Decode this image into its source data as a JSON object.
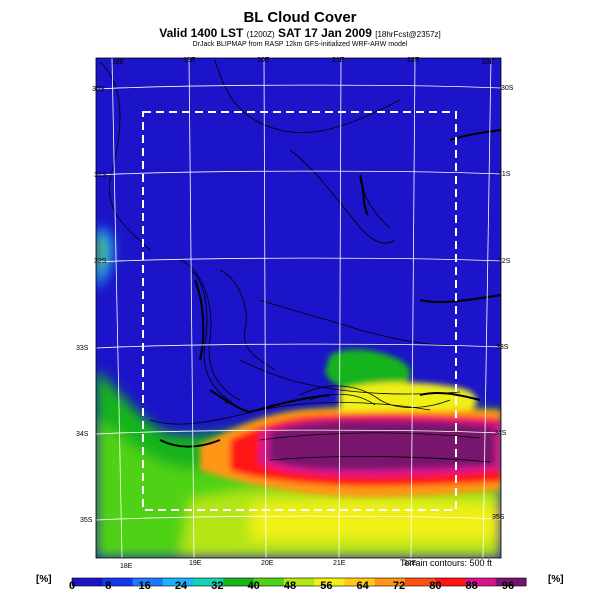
{
  "title": "BL Cloud Cover",
  "subtitle_main": "Valid 1400 LST",
  "subtitle_small_1": "(1200Z)",
  "subtitle_date": "SAT 17 Jan 2009",
  "subtitle_small_2": "[18hrFcst@2357z]",
  "credit": "DrJack BLIPMAP from RASP 12km GFS-initialized WRF-ARW model",
  "terrain_note": "Terrain contours: 500 ft",
  "map": {
    "top_lon_labels": [
      "18E",
      "19E",
      "20E",
      "21E",
      "22E",
      "23E"
    ],
    "bottom_lon_labels": [
      "18E",
      "19E",
      "20E",
      "21E",
      "22E"
    ],
    "left_lat_labels": [
      "30S",
      "31S",
      "32S",
      "33S",
      "34S",
      "35S"
    ],
    "right_lat_labels": [
      "30S",
      "31S",
      "32S",
      "33S",
      "34S",
      "35S"
    ],
    "contour_label": "1"
  },
  "colorbar": {
    "unit_left": "[%]",
    "unit_right": "[%]",
    "ticks": [
      "0",
      "8",
      "16",
      "24",
      "32",
      "40",
      "48",
      "56",
      "64",
      "72",
      "80",
      "88",
      "96"
    ],
    "colors": [
      "#1b14c8",
      "#1438f0",
      "#1e78ff",
      "#18b4ff",
      "#14d2b4",
      "#18b41e",
      "#50d214",
      "#b4e614",
      "#f0f014",
      "#ffc814",
      "#ff9614",
      "#ff5014",
      "#ff1414",
      "#dc148c",
      "#78146e"
    ]
  }
}
